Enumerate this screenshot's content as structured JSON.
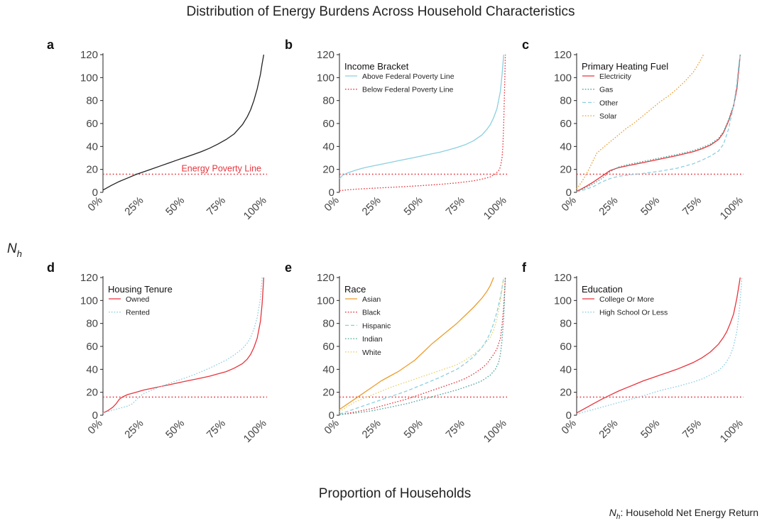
{
  "title": "Distribution of Energy Burdens Across Household Characteristics",
  "shared_xlabel": "Proportion of Households",
  "shared_ylabel": "N",
  "shared_ylabel_sub": "h",
  "footnote_symbol": "N",
  "footnote_symbol_sub": "h",
  "footnote_text": ": Household Net Energy Return",
  "colors": {
    "black": "#222222",
    "red": "#e8343c",
    "blue": "#8ccfe0",
    "teal": "#4aa39a",
    "orange": "#ec9d2c",
    "yellow": "#e7d16f",
    "poverty_line": "#e8343c"
  },
  "chart_data": [
    {
      "id": "a",
      "type": "line",
      "letter": "a",
      "xticks": [
        "0%",
        "25%",
        "50%",
        "75%",
        "100%"
      ],
      "yticks": [
        "0",
        "20",
        "40",
        "60",
        "80",
        "100",
        "120"
      ],
      "xlim": [
        0,
        100
      ],
      "ylim": [
        0,
        120
      ],
      "legend_title": "",
      "hline": {
        "y": 15.8,
        "label": "Energy Poverty Line",
        "style": "dotted"
      },
      "series": [
        {
          "color": "black",
          "dash": "solid",
          "x": [
            0,
            5,
            10,
            15,
            20,
            25,
            30,
            35,
            40,
            45,
            50,
            55,
            60,
            65,
            70,
            75,
            80,
            85,
            88,
            90,
            92,
            94,
            96,
            97,
            98
          ],
          "y": [
            2,
            6,
            9.5,
            12.5,
            15.5,
            18,
            20.5,
            23,
            25.5,
            28,
            30.5,
            33,
            35.5,
            38.5,
            42,
            46,
            51,
            59,
            66,
            72,
            80,
            90,
            103,
            112,
            120
          ]
        }
      ]
    },
    {
      "id": "b",
      "type": "line",
      "letter": "b",
      "xticks": [
        "0%",
        "25%",
        "50%",
        "75%",
        "100%"
      ],
      "yticks": [
        "0",
        "20",
        "40",
        "60",
        "80",
        "100",
        "120"
      ],
      "xlim": [
        0,
        100
      ],
      "ylim": [
        0,
        120
      ],
      "legend_title": "Income Bracket",
      "hline": {
        "y": 15.8,
        "label": "",
        "style": "dotted"
      },
      "series": [
        {
          "name": "Above Federal Poverty Line",
          "color": "blue",
          "dash": "solid",
          "x": [
            0,
            2,
            5,
            10,
            15,
            20,
            25,
            30,
            35,
            40,
            45,
            50,
            55,
            60,
            65,
            70,
            75,
            80,
            85,
            88,
            90,
            92,
            94,
            96,
            97,
            98
          ],
          "y": [
            12,
            15,
            17,
            19.5,
            21.5,
            23,
            24.5,
            26,
            27.5,
            29,
            30.5,
            32,
            33.5,
            35,
            37,
            39,
            41.5,
            45,
            50,
            55,
            59,
            65,
            73,
            88,
            102,
            120
          ]
        },
        {
          "name": "Below Federal Poverty Line",
          "color": "red",
          "dash": "dotted",
          "x": [
            0,
            5,
            10,
            20,
            30,
            40,
            50,
            60,
            70,
            80,
            85,
            90,
            93,
            95,
            96,
            97,
            97.5,
            98,
            98.5,
            99
          ],
          "y": [
            1.5,
            2.2,
            2.8,
            3.6,
            4.3,
            5.1,
            6,
            7,
            8.2,
            10,
            11.5,
            13.5,
            16,
            19,
            22,
            30,
            40,
            60,
            90,
            120
          ]
        }
      ]
    },
    {
      "id": "c",
      "type": "line",
      "letter": "c",
      "xticks": [
        "0%",
        "25%",
        "50%",
        "75%",
        "100%"
      ],
      "yticks": [
        "0",
        "20",
        "40",
        "60",
        "80",
        "100",
        "120"
      ],
      "xlim": [
        0,
        100
      ],
      "ylim": [
        0,
        120
      ],
      "legend_title": "Primary Heating Fuel",
      "hline": {
        "y": 15.8,
        "label": "",
        "style": "dotted"
      },
      "series": [
        {
          "name": "Electricity",
          "color": "red",
          "dash": "solid",
          "x": [
            0,
            3,
            6,
            10,
            15,
            20,
            25,
            30,
            40,
            50,
            60,
            70,
            75,
            80,
            85,
            88,
            91,
            94,
            96,
            97,
            98
          ],
          "y": [
            1,
            3,
            5.5,
            9,
            14,
            19,
            21.5,
            23,
            26,
            29,
            32,
            35.5,
            38,
            41,
            46,
            52,
            62,
            75,
            90,
            105,
            120
          ]
        },
        {
          "name": "Gas",
          "color": "teal",
          "dash": "dotted",
          "x": [
            0,
            3,
            6,
            10,
            15,
            20,
            25,
            30,
            40,
            50,
            60,
            70,
            75,
            80,
            85,
            88,
            91,
            94,
            96,
            97,
            98
          ],
          "y": [
            1,
            2.5,
            4.5,
            7.5,
            12,
            18,
            22,
            24,
            27,
            30,
            33,
            36.5,
            39,
            42,
            47,
            53,
            63,
            76,
            92,
            106,
            120
          ]
        },
        {
          "name": "Other",
          "color": "blue",
          "dash": "dashed",
          "x": [
            0,
            5,
            10,
            15,
            20,
            25,
            30,
            40,
            50,
            60,
            70,
            75,
            80,
            85,
            88,
            91,
            94,
            96,
            97,
            98
          ],
          "y": [
            0.5,
            2.5,
            5,
            9,
            12,
            14,
            15,
            16.5,
            18.5,
            21,
            25,
            28,
            31.5,
            36,
            42,
            55,
            75,
            95,
            110,
            120
          ]
        },
        {
          "name": "Solar",
          "color": "orange",
          "dash": "dotted",
          "x": [
            0,
            3,
            5,
            8,
            10,
            12,
            15,
            20,
            25,
            30,
            35,
            40,
            45,
            50,
            55,
            60,
            65,
            70,
            73,
            76
          ],
          "y": [
            3,
            9,
            14,
            22,
            28,
            34,
            38,
            44,
            50,
            56,
            61,
            67,
            73,
            79,
            84,
            90,
            97,
            105,
            112,
            120
          ]
        }
      ]
    },
    {
      "id": "d",
      "type": "line",
      "letter": "d",
      "xticks": [
        "0%",
        "25%",
        "50%",
        "75%",
        "100%"
      ],
      "yticks": [
        "0",
        "20",
        "40",
        "60",
        "80",
        "100",
        "120"
      ],
      "xlim": [
        0,
        100
      ],
      "ylim": [
        0,
        120
      ],
      "legend_title": "Housing Tenure",
      "hline": {
        "y": 15.8,
        "label": "",
        "style": "dotted"
      },
      "series": [
        {
          "name": "Owned",
          "color": "red",
          "dash": "solid",
          "x": [
            0,
            3,
            6,
            8,
            9,
            10,
            12,
            15,
            20,
            25,
            30,
            35,
            40,
            45,
            50,
            55,
            60,
            65,
            70,
            75,
            80,
            85,
            88,
            90,
            92,
            94,
            96,
            97,
            98
          ],
          "y": [
            2,
            4,
            7,
            10,
            12,
            14,
            16,
            18,
            20,
            22,
            23.5,
            25,
            26.5,
            28,
            29.5,
            31,
            32.5,
            34,
            36,
            38,
            41,
            45,
            49,
            53,
            59,
            67,
            82,
            97,
            120
          ]
        },
        {
          "name": "Rented",
          "color": "blue",
          "dash": "dotted",
          "x": [
            0,
            5,
            10,
            15,
            18,
            20,
            22,
            25,
            30,
            35,
            40,
            45,
            50,
            55,
            60,
            65,
            70,
            75,
            80,
            85,
            88,
            90,
            92,
            94,
            96,
            97
          ],
          "y": [
            2,
            4,
            6,
            8,
            10,
            13,
            16,
            19,
            22,
            25,
            27.5,
            30,
            32.5,
            35,
            38,
            41,
            44.5,
            48,
            52.5,
            58,
            63,
            68,
            75,
            85,
            102,
            120
          ]
        }
      ]
    },
    {
      "id": "e",
      "type": "line",
      "letter": "e",
      "xticks": [
        "0%",
        "25%",
        "50%",
        "75%",
        "100%"
      ],
      "yticks": [
        "0",
        "20",
        "40",
        "60",
        "80",
        "100",
        "120"
      ],
      "xlim": [
        0,
        100
      ],
      "ylim": [
        0,
        120
      ],
      "legend_title": "Race",
      "hline": {
        "y": 15.8,
        "label": "",
        "style": "dotted"
      },
      "series": [
        {
          "name": "Asian",
          "color": "orange",
          "dash": "solid",
          "x": [
            0,
            5,
            10,
            15,
            20,
            25,
            30,
            35,
            40,
            45,
            50,
            55,
            60,
            65,
            70,
            75,
            80,
            85,
            88,
            90,
            92
          ],
          "y": [
            5,
            10,
            15,
            20,
            25,
            30,
            34,
            38,
            43,
            48,
            55,
            62,
            68,
            74,
            80,
            87,
            94,
            102,
            108,
            113,
            120
          ]
        },
        {
          "name": "Black",
          "color": "red",
          "dash": "dotted",
          "x": [
            0,
            10,
            20,
            30,
            40,
            50,
            60,
            70,
            75,
            80,
            85,
            88,
            90,
            92,
            94,
            96,
            97,
            98,
            99
          ],
          "y": [
            0.5,
            3,
            6,
            10,
            14,
            19,
            24,
            29,
            32,
            36,
            41,
            45,
            49,
            53,
            58,
            67,
            78,
            95,
            120
          ]
        },
        {
          "name": "Hispanic",
          "color": "blue",
          "dash": "dashed",
          "x": [
            0,
            10,
            20,
            30,
            40,
            50,
            60,
            70,
            75,
            80,
            85,
            88,
            90,
            92,
            94,
            96,
            97,
            98
          ],
          "y": [
            1,
            6,
            11,
            16,
            21,
            27,
            33,
            40,
            45,
            51,
            59,
            66,
            72,
            80,
            90,
            103,
            111,
            120
          ]
        },
        {
          "name": "Indian",
          "color": "teal",
          "dash": "dotted",
          "x": [
            0,
            10,
            20,
            30,
            40,
            50,
            60,
            70,
            80,
            85,
            90,
            93,
            95,
            96,
            97,
            98,
            99
          ],
          "y": [
            0.5,
            2,
            4,
            7,
            10,
            14,
            18,
            22,
            27,
            30,
            35,
            40,
            46,
            53,
            65,
            85,
            120
          ]
        },
        {
          "name": "White",
          "color": "yellow",
          "dash": "dotted",
          "x": [
            0,
            5,
            10,
            15,
            20,
            25,
            30,
            40,
            50,
            60,
            70,
            75,
            80,
            85,
            90,
            92,
            94,
            96,
            97,
            98
          ],
          "y": [
            3,
            8,
            12,
            15,
            18,
            21,
            24,
            29,
            34,
            39,
            44,
            48,
            53,
            59,
            68,
            74,
            84,
            99,
            110,
            120
          ]
        }
      ]
    },
    {
      "id": "f",
      "type": "line",
      "letter": "f",
      "xticks": [
        "0%",
        "25%",
        "50%",
        "75%",
        "100%"
      ],
      "yticks": [
        "0",
        "20",
        "40",
        "60",
        "80",
        "100",
        "120"
      ],
      "xlim": [
        0,
        100
      ],
      "ylim": [
        0,
        120
      ],
      "legend_title": "Education",
      "hline": {
        "y": 15.8,
        "label": "",
        "style": "dotted"
      },
      "series": [
        {
          "name": "College Or More",
          "color": "red",
          "dash": "solid",
          "x": [
            0,
            5,
            10,
            15,
            20,
            25,
            30,
            35,
            40,
            45,
            50,
            55,
            60,
            65,
            70,
            75,
            80,
            85,
            88,
            90,
            92,
            94,
            96,
            97,
            98
          ],
          "y": [
            2,
            6,
            10,
            14,
            17.5,
            21,
            24,
            27,
            30,
            32.5,
            35,
            37.5,
            40,
            43,
            46,
            50,
            55,
            62,
            68,
            73,
            80,
            88,
            102,
            111,
            120
          ]
        },
        {
          "name": "High School Or Less",
          "color": "blue",
          "dash": "dotted",
          "x": [
            0,
            10,
            20,
            30,
            40,
            50,
            60,
            70,
            75,
            80,
            85,
            88,
            90,
            92,
            94,
            96,
            97,
            98,
            99
          ],
          "y": [
            1,
            5,
            9,
            13,
            17,
            21.5,
            25,
            29,
            31.5,
            35,
            39,
            43,
            47,
            52,
            60,
            73,
            85,
            100,
            120
          ]
        }
      ]
    }
  ]
}
